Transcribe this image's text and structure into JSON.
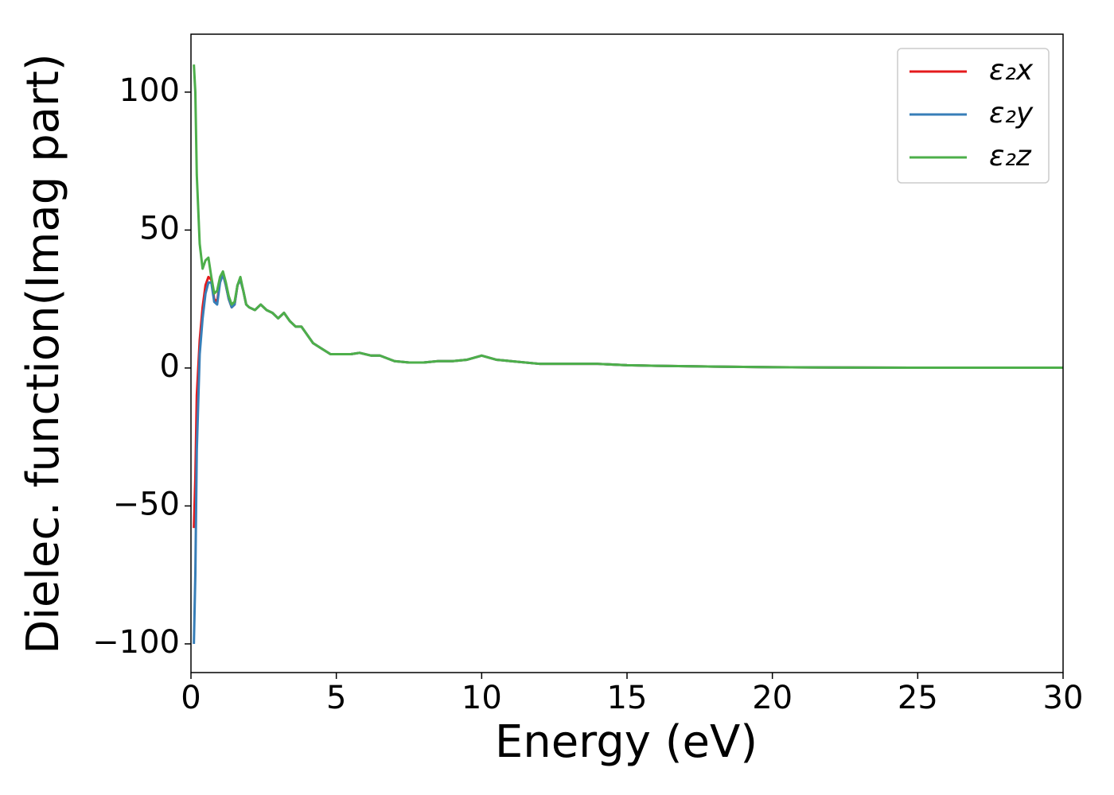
{
  "chart_data": {
    "type": "line",
    "xlabel": "Energy (eV)",
    "ylabel": "Dielec. function(Imag part)",
    "x": [
      0.1,
      0.15,
      0.2,
      0.3,
      0.4,
      0.5,
      0.6,
      0.7,
      0.8,
      0.9,
      1.0,
      1.1,
      1.2,
      1.3,
      1.4,
      1.5,
      1.6,
      1.7,
      1.8,
      1.9,
      2.0,
      2.2,
      2.4,
      2.6,
      2.8,
      3.0,
      3.2,
      3.4,
      3.6,
      3.8,
      4.0,
      4.2,
      4.5,
      4.8,
      5.0,
      5.5,
      5.8,
      6.2,
      6.5,
      7.0,
      7.5,
      8,
      8.5,
      9,
      9.5,
      10,
      10.5,
      11,
      12,
      13,
      14,
      15,
      16,
      18,
      20,
      22,
      25,
      28,
      30
    ],
    "series": [
      {
        "name": "ε₂x",
        "color": "#e41a1c",
        "values": [
          -58,
          -40,
          -10,
          10,
          22,
          30,
          33,
          32,
          25,
          24,
          32,
          34,
          30,
          25,
          22,
          23,
          30,
          32,
          28,
          23,
          22,
          21,
          23,
          21,
          20,
          18,
          20,
          17,
          15,
          15,
          12,
          9,
          7,
          5,
          5,
          5,
          5.5,
          4.5,
          4.5,
          2.5,
          2,
          2,
          2.5,
          2.5,
          3,
          4.5,
          3,
          2.5,
          1.5,
          1.5,
          1.5,
          1,
          0.8,
          0.5,
          0.3,
          0.2,
          0.1,
          0.1,
          0.1
        ]
      },
      {
        "name": "ε₂y",
        "color": "#377eb8",
        "values": [
          -100,
          -75,
          -30,
          5,
          18,
          27,
          31,
          31,
          24,
          23,
          31,
          34,
          30,
          25,
          22,
          23,
          30,
          32,
          28,
          23,
          22,
          21,
          23,
          21,
          20,
          18,
          20,
          17,
          15,
          15,
          12,
          9,
          7,
          5,
          5,
          5,
          5.5,
          4.5,
          4.5,
          2.5,
          2,
          2,
          2.5,
          2.5,
          3,
          4.5,
          3,
          2.5,
          1.5,
          1.5,
          1.5,
          1,
          0.8,
          0.5,
          0.3,
          0.2,
          0.1,
          0.1,
          0.1
        ]
      },
      {
        "name": "ε₂z",
        "color": "#4daf4a",
        "values": [
          110,
          100,
          70,
          45,
          36,
          39,
          40,
          33,
          27,
          28,
          33,
          35,
          31,
          26,
          23,
          24,
          30,
          33,
          28,
          23,
          22,
          21,
          23,
          21,
          20,
          18,
          20,
          17,
          15,
          15,
          12,
          9,
          7,
          5,
          5,
          5,
          5.5,
          4.5,
          4.5,
          2.5,
          2,
          2,
          2.5,
          2.5,
          3,
          4.5,
          3,
          2.5,
          1.5,
          1.5,
          1.5,
          1,
          0.8,
          0.5,
          0.3,
          0.2,
          0.1,
          0.1,
          0.1
        ]
      }
    ],
    "xlim": [
      0,
      30
    ],
    "xticks": [
      0,
      5,
      10,
      15,
      20,
      25,
      30
    ],
    "ylim": [
      -110.4,
      121
    ],
    "yticks": [
      {
        "value": -100,
        "label": "−100"
      },
      {
        "value": -50,
        "label": "−50"
      },
      0,
      50,
      100
    ],
    "grid": false,
    "legend": "upper right"
  }
}
